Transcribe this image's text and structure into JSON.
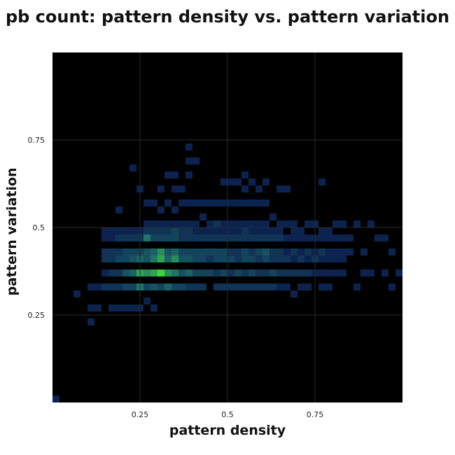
{
  "chart_data": {
    "type": "heatmap",
    "title": "pb count: pattern density vs. pattern variation",
    "xlabel": "pattern density",
    "ylabel": "pattern variation",
    "xlim": [
      0,
      1
    ],
    "ylim": [
      0,
      1
    ],
    "bin_size": 0.02,
    "x_ticks": [
      {
        "value": 0.25,
        "label": "0.25"
      },
      {
        "value": 0.5,
        "label": "0.5"
      },
      {
        "value": 0.75,
        "label": "0.75"
      }
    ],
    "y_ticks": [
      {
        "value": 0.25,
        "label": "0.25"
      },
      {
        "value": 0.5,
        "label": "0.5"
      },
      {
        "value": 0.75,
        "label": "0.75"
      }
    ],
    "grid": true,
    "colors": {
      "background": "#000000",
      "low": "#0c2350",
      "mid": "#1d6a6a",
      "high": "#3ad63a",
      "grid": "#2a2a2a"
    },
    "max_count": 10,
    "bins": [
      [
        0.0,
        0.0,
        1
      ],
      [
        0.06,
        0.3,
        1
      ],
      [
        0.1,
        0.22,
        1
      ],
      [
        0.1,
        0.26,
        1
      ],
      [
        0.1,
        0.32,
        1
      ],
      [
        0.12,
        0.32,
        1
      ],
      [
        0.12,
        0.26,
        1
      ],
      [
        0.14,
        0.32,
        2
      ],
      [
        0.14,
        0.36,
        1
      ],
      [
        0.14,
        0.4,
        2
      ],
      [
        0.14,
        0.42,
        2
      ],
      [
        0.14,
        0.46,
        1
      ],
      [
        0.14,
        0.48,
        1
      ],
      [
        0.16,
        0.32,
        2
      ],
      [
        0.16,
        0.36,
        2
      ],
      [
        0.16,
        0.4,
        2
      ],
      [
        0.16,
        0.42,
        2
      ],
      [
        0.16,
        0.46,
        1
      ],
      [
        0.16,
        0.48,
        1
      ],
      [
        0.16,
        0.26,
        1
      ],
      [
        0.18,
        0.32,
        2
      ],
      [
        0.18,
        0.36,
        2
      ],
      [
        0.18,
        0.4,
        3
      ],
      [
        0.18,
        0.42,
        2
      ],
      [
        0.18,
        0.46,
        2
      ],
      [
        0.18,
        0.48,
        1
      ],
      [
        0.18,
        0.26,
        1
      ],
      [
        0.18,
        0.54,
        1
      ],
      [
        0.2,
        0.32,
        3
      ],
      [
        0.2,
        0.36,
        4
      ],
      [
        0.2,
        0.4,
        3
      ],
      [
        0.2,
        0.42,
        3
      ],
      [
        0.2,
        0.46,
        2
      ],
      [
        0.2,
        0.48,
        1
      ],
      [
        0.2,
        0.26,
        1
      ],
      [
        0.22,
        0.32,
        3
      ],
      [
        0.22,
        0.36,
        5
      ],
      [
        0.22,
        0.4,
        4
      ],
      [
        0.22,
        0.42,
        3
      ],
      [
        0.22,
        0.46,
        2
      ],
      [
        0.22,
        0.48,
        1
      ],
      [
        0.22,
        0.26,
        1
      ],
      [
        0.22,
        0.66,
        1
      ],
      [
        0.24,
        0.32,
        6
      ],
      [
        0.24,
        0.36,
        8
      ],
      [
        0.24,
        0.4,
        5
      ],
      [
        0.24,
        0.42,
        3
      ],
      [
        0.24,
        0.46,
        2
      ],
      [
        0.24,
        0.48,
        1
      ],
      [
        0.24,
        0.26,
        1
      ],
      [
        0.24,
        0.6,
        1
      ],
      [
        0.26,
        0.32,
        3
      ],
      [
        0.26,
        0.36,
        7
      ],
      [
        0.26,
        0.4,
        4
      ],
      [
        0.26,
        0.42,
        4
      ],
      [
        0.26,
        0.46,
        6
      ],
      [
        0.26,
        0.48,
        2
      ],
      [
        0.26,
        0.5,
        1
      ],
      [
        0.26,
        0.56,
        1
      ],
      [
        0.26,
        0.28,
        1
      ],
      [
        0.28,
        0.32,
        4
      ],
      [
        0.28,
        0.36,
        8
      ],
      [
        0.28,
        0.4,
        6
      ],
      [
        0.28,
        0.42,
        5
      ],
      [
        0.28,
        0.46,
        3
      ],
      [
        0.28,
        0.48,
        2
      ],
      [
        0.28,
        0.5,
        1
      ],
      [
        0.28,
        0.56,
        1
      ],
      [
        0.28,
        0.26,
        1
      ],
      [
        0.3,
        0.32,
        3
      ],
      [
        0.3,
        0.36,
        10
      ],
      [
        0.3,
        0.4,
        8
      ],
      [
        0.3,
        0.42,
        7
      ],
      [
        0.3,
        0.46,
        3
      ],
      [
        0.3,
        0.48,
        2
      ],
      [
        0.3,
        0.5,
        1
      ],
      [
        0.3,
        0.54,
        1
      ],
      [
        0.3,
        0.6,
        1
      ],
      [
        0.32,
        0.32,
        5
      ],
      [
        0.32,
        0.36,
        7
      ],
      [
        0.32,
        0.4,
        5
      ],
      [
        0.32,
        0.42,
        4
      ],
      [
        0.32,
        0.46,
        3
      ],
      [
        0.32,
        0.48,
        2
      ],
      [
        0.32,
        0.5,
        1
      ],
      [
        0.32,
        0.56,
        1
      ],
      [
        0.32,
        0.64,
        1
      ],
      [
        0.34,
        0.32,
        3
      ],
      [
        0.34,
        0.36,
        6
      ],
      [
        0.34,
        0.4,
        7
      ],
      [
        0.34,
        0.42,
        5
      ],
      [
        0.34,
        0.46,
        3
      ],
      [
        0.34,
        0.48,
        3
      ],
      [
        0.34,
        0.5,
        1
      ],
      [
        0.34,
        0.54,
        1
      ],
      [
        0.34,
        0.6,
        1
      ],
      [
        0.34,
        0.64,
        1
      ],
      [
        0.36,
        0.32,
        3
      ],
      [
        0.36,
        0.36,
        4
      ],
      [
        0.36,
        0.4,
        4
      ],
      [
        0.36,
        0.42,
        3
      ],
      [
        0.36,
        0.46,
        2
      ],
      [
        0.36,
        0.48,
        2
      ],
      [
        0.36,
        0.5,
        1
      ],
      [
        0.36,
        0.56,
        1
      ],
      [
        0.36,
        0.6,
        1
      ],
      [
        0.38,
        0.32,
        2
      ],
      [
        0.38,
        0.36,
        5
      ],
      [
        0.38,
        0.4,
        4
      ],
      [
        0.38,
        0.42,
        3
      ],
      [
        0.38,
        0.46,
        2
      ],
      [
        0.38,
        0.48,
        2
      ],
      [
        0.38,
        0.5,
        1
      ],
      [
        0.38,
        0.56,
        1
      ],
      [
        0.38,
        0.68,
        1
      ],
      [
        0.38,
        0.72,
        1
      ],
      [
        0.38,
        0.64,
        1
      ],
      [
        0.4,
        0.32,
        2
      ],
      [
        0.4,
        0.36,
        3
      ],
      [
        0.4,
        0.4,
        3
      ],
      [
        0.4,
        0.42,
        3
      ],
      [
        0.4,
        0.46,
        2
      ],
      [
        0.4,
        0.48,
        1
      ],
      [
        0.4,
        0.5,
        1
      ],
      [
        0.4,
        0.56,
        1
      ],
      [
        0.4,
        0.68,
        1
      ],
      [
        0.42,
        0.32,
        2
      ],
      [
        0.42,
        0.36,
        3
      ],
      [
        0.42,
        0.4,
        3
      ],
      [
        0.42,
        0.42,
        3
      ],
      [
        0.42,
        0.46,
        2
      ],
      [
        0.42,
        0.48,
        1
      ],
      [
        0.42,
        0.52,
        1
      ],
      [
        0.42,
        0.56,
        1
      ],
      [
        0.44,
        0.36,
        3
      ],
      [
        0.44,
        0.4,
        2
      ],
      [
        0.44,
        0.42,
        3
      ],
      [
        0.44,
        0.46,
        2
      ],
      [
        0.44,
        0.48,
        1
      ],
      [
        0.44,
        0.5,
        1
      ],
      [
        0.44,
        0.56,
        1
      ],
      [
        0.46,
        0.32,
        2
      ],
      [
        0.46,
        0.36,
        2
      ],
      [
        0.46,
        0.4,
        3
      ],
      [
        0.46,
        0.42,
        3
      ],
      [
        0.46,
        0.46,
        2
      ],
      [
        0.46,
        0.48,
        1
      ],
      [
        0.46,
        0.5,
        2
      ],
      [
        0.46,
        0.56,
        1
      ],
      [
        0.48,
        0.32,
        2
      ],
      [
        0.48,
        0.36,
        3
      ],
      [
        0.48,
        0.4,
        3
      ],
      [
        0.48,
        0.42,
        3
      ],
      [
        0.48,
        0.46,
        2
      ],
      [
        0.48,
        0.48,
        1
      ],
      [
        0.48,
        0.5,
        1
      ],
      [
        0.48,
        0.56,
        1
      ],
      [
        0.48,
        0.62,
        1
      ],
      [
        0.5,
        0.32,
        2
      ],
      [
        0.5,
        0.36,
        2
      ],
      [
        0.5,
        0.4,
        3
      ],
      [
        0.5,
        0.42,
        2
      ],
      [
        0.5,
        0.46,
        2
      ],
      [
        0.5,
        0.48,
        1
      ],
      [
        0.5,
        0.5,
        1
      ],
      [
        0.5,
        0.56,
        1
      ],
      [
        0.5,
        0.62,
        1
      ],
      [
        0.52,
        0.32,
        2
      ],
      [
        0.52,
        0.36,
        3
      ],
      [
        0.52,
        0.4,
        2
      ],
      [
        0.52,
        0.42,
        2
      ],
      [
        0.52,
        0.46,
        2
      ],
      [
        0.52,
        0.48,
        1
      ],
      [
        0.52,
        0.5,
        1
      ],
      [
        0.52,
        0.56,
        1
      ],
      [
        0.52,
        0.62,
        1
      ],
      [
        0.54,
        0.32,
        2
      ],
      [
        0.54,
        0.36,
        2
      ],
      [
        0.54,
        0.4,
        3
      ],
      [
        0.54,
        0.42,
        3
      ],
      [
        0.54,
        0.46,
        2
      ],
      [
        0.54,
        0.48,
        2
      ],
      [
        0.54,
        0.5,
        1
      ],
      [
        0.54,
        0.56,
        1
      ],
      [
        0.54,
        0.6,
        1
      ],
      [
        0.54,
        0.64,
        1
      ],
      [
        0.56,
        0.32,
        2
      ],
      [
        0.56,
        0.36,
        3
      ],
      [
        0.56,
        0.4,
        3
      ],
      [
        0.56,
        0.42,
        2
      ],
      [
        0.56,
        0.46,
        2
      ],
      [
        0.56,
        0.48,
        1
      ],
      [
        0.56,
        0.5,
        1
      ],
      [
        0.56,
        0.56,
        1
      ],
      [
        0.56,
        0.62,
        1
      ],
      [
        0.58,
        0.32,
        2
      ],
      [
        0.58,
        0.36,
        2
      ],
      [
        0.58,
        0.4,
        2
      ],
      [
        0.58,
        0.42,
        3
      ],
      [
        0.58,
        0.46,
        2
      ],
      [
        0.58,
        0.48,
        1
      ],
      [
        0.58,
        0.5,
        1
      ],
      [
        0.58,
        0.56,
        1
      ],
      [
        0.58,
        0.6,
        1
      ],
      [
        0.6,
        0.32,
        2
      ],
      [
        0.6,
        0.36,
        2
      ],
      [
        0.6,
        0.4,
        3
      ],
      [
        0.6,
        0.42,
        4
      ],
      [
        0.6,
        0.46,
        2
      ],
      [
        0.6,
        0.48,
        1
      ],
      [
        0.6,
        0.5,
        1
      ],
      [
        0.6,
        0.56,
        1
      ],
      [
        0.6,
        0.62,
        1
      ],
      [
        0.62,
        0.32,
        2
      ],
      [
        0.62,
        0.36,
        3
      ],
      [
        0.62,
        0.4,
        2
      ],
      [
        0.62,
        0.42,
        2
      ],
      [
        0.62,
        0.46,
        2
      ],
      [
        0.62,
        0.48,
        1
      ],
      [
        0.62,
        0.52,
        1
      ],
      [
        0.64,
        0.32,
        1
      ],
      [
        0.64,
        0.36,
        2
      ],
      [
        0.64,
        0.4,
        2
      ],
      [
        0.64,
        0.42,
        2
      ],
      [
        0.64,
        0.46,
        2
      ],
      [
        0.64,
        0.48,
        1
      ],
      [
        0.64,
        0.5,
        1
      ],
      [
        0.64,
        0.6,
        1
      ],
      [
        0.66,
        0.36,
        2
      ],
      [
        0.66,
        0.4,
        2
      ],
      [
        0.66,
        0.42,
        1
      ],
      [
        0.66,
        0.46,
        1
      ],
      [
        0.66,
        0.5,
        1
      ],
      [
        0.66,
        0.6,
        1
      ],
      [
        0.66,
        0.32,
        1
      ],
      [
        0.68,
        0.36,
        2
      ],
      [
        0.68,
        0.4,
        1
      ],
      [
        0.68,
        0.42,
        2
      ],
      [
        0.68,
        0.46,
        1
      ],
      [
        0.68,
        0.48,
        1
      ],
      [
        0.68,
        0.5,
        1
      ],
      [
        0.68,
        0.3,
        1
      ],
      [
        0.7,
        0.32,
        1
      ],
      [
        0.7,
        0.36,
        2
      ],
      [
        0.7,
        0.4,
        2
      ],
      [
        0.7,
        0.42,
        1
      ],
      [
        0.7,
        0.46,
        1
      ],
      [
        0.7,
        0.48,
        1
      ],
      [
        0.72,
        0.36,
        2
      ],
      [
        0.72,
        0.4,
        1
      ],
      [
        0.72,
        0.42,
        2
      ],
      [
        0.72,
        0.46,
        1
      ],
      [
        0.72,
        0.5,
        1
      ],
      [
        0.72,
        0.32,
        1
      ],
      [
        0.74,
        0.36,
        1
      ],
      [
        0.74,
        0.4,
        2
      ],
      [
        0.74,
        0.42,
        1
      ],
      [
        0.74,
        0.46,
        1
      ],
      [
        0.74,
        0.5,
        1
      ],
      [
        0.76,
        0.36,
        1
      ],
      [
        0.76,
        0.4,
        1
      ],
      [
        0.76,
        0.42,
        2
      ],
      [
        0.76,
        0.46,
        1
      ],
      [
        0.76,
        0.48,
        1
      ],
      [
        0.76,
        0.32,
        1
      ],
      [
        0.76,
        0.62,
        1
      ],
      [
        0.78,
        0.36,
        1
      ],
      [
        0.78,
        0.4,
        1
      ],
      [
        0.78,
        0.42,
        1
      ],
      [
        0.78,
        0.46,
        1
      ],
      [
        0.78,
        0.32,
        1
      ],
      [
        0.78,
        0.48,
        1
      ],
      [
        0.8,
        0.36,
        1
      ],
      [
        0.8,
        0.4,
        1
      ],
      [
        0.8,
        0.42,
        1
      ],
      [
        0.8,
        0.46,
        1
      ],
      [
        0.8,
        0.5,
        1
      ],
      [
        0.82,
        0.4,
        1
      ],
      [
        0.82,
        0.42,
        1
      ],
      [
        0.82,
        0.46,
        1
      ],
      [
        0.82,
        0.5,
        1
      ],
      [
        0.82,
        0.36,
        1
      ],
      [
        0.84,
        0.42,
        1
      ],
      [
        0.84,
        0.46,
        1
      ],
      [
        0.86,
        0.32,
        1
      ],
      [
        0.86,
        0.5,
        1
      ],
      [
        0.88,
        0.36,
        1
      ],
      [
        0.88,
        0.42,
        1
      ],
      [
        0.9,
        0.36,
        1
      ],
      [
        0.9,
        0.5,
        1
      ],
      [
        0.92,
        0.46,
        1
      ],
      [
        0.94,
        0.46,
        1
      ],
      [
        0.94,
        0.36,
        1
      ],
      [
        0.96,
        0.42,
        1
      ],
      [
        0.96,
        0.32,
        1
      ],
      [
        0.98,
        0.36,
        1
      ]
    ]
  }
}
